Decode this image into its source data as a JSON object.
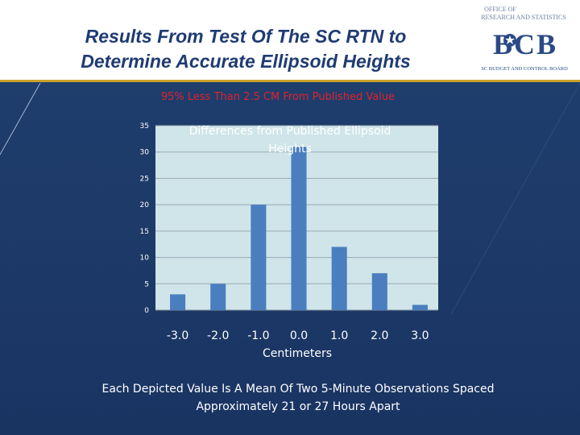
{
  "slide": {
    "title_line1": "Results From Test Of The SC RTN to",
    "title_line2": "Determine Accurate Ellipsoid Heights",
    "subtitle": "95% Less Than 2.5 CM From Published Value",
    "caption_line1": "Each Depicted Value Is A Mean Of Two 5-Minute Observations Spaced",
    "caption_line2": "Approximately 21 or 27 Hours Apart",
    "colors": {
      "header_bg": "#ffffff",
      "title": "#1f3b73",
      "slide_bg": "#1d3a6b",
      "accent_rule": "#c9a227",
      "subtitle": "#e0212a",
      "plot_bg": "#cfe5ea",
      "bar": "#4a7ebf"
    }
  },
  "logo": {
    "top_line1": "OFFICE OF",
    "top_line2": "RESEARCH AND STATISTICS",
    "mark": "BCB",
    "bottom_line": "SC BUDGET AND CONTROL BOARD",
    "icon": "palmetto-seal-icon"
  },
  "chart_data": {
    "type": "bar",
    "title": "Differences from Published Ellipsoid Heights",
    "title_line1": "Differences from Published Ellipsoid",
    "title_line2": "Heights",
    "categories": [
      "-3.0",
      "-2.0",
      "-1.0",
      "0.0",
      "1.0",
      "2.0",
      "3.0"
    ],
    "values": [
      3,
      5,
      20,
      31,
      12,
      7,
      1
    ],
    "xlabel": "Centimeters",
    "ylabel": "",
    "ylim": [
      0,
      35
    ],
    "yticks": [
      "0",
      "5",
      "10",
      "15",
      "20",
      "25",
      "30",
      "35"
    ],
    "grid": true,
    "legend": "none"
  }
}
